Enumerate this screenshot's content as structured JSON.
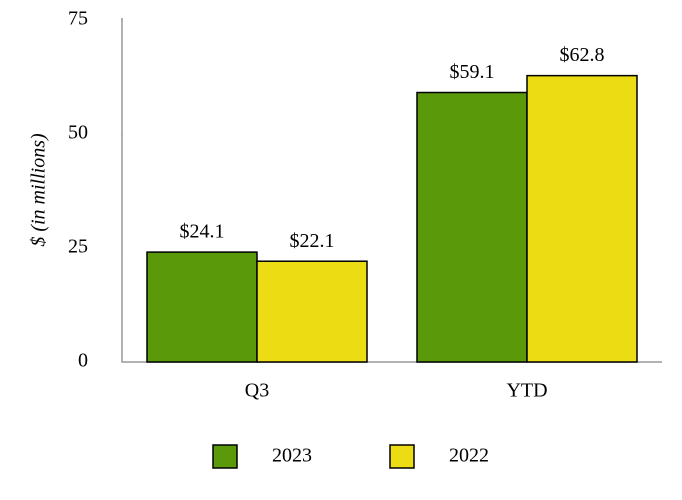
{
  "chart_data": {
    "type": "bar",
    "y_label": "$ (in millions)",
    "categories": [
      "Q3",
      "YTD"
    ],
    "series": [
      {
        "name": "2023",
        "color": "#5a9a0a",
        "values": [
          24.1,
          59.1
        ],
        "value_labels": [
          "$24.1",
          "$59.1"
        ]
      },
      {
        "name": "2022",
        "color": "#ebdc13",
        "values": [
          22.1,
          62.8
        ],
        "value_labels": [
          "$22.1",
          "$62.8"
        ]
      }
    ],
    "ylim": [
      0,
      75
    ],
    "yticks": [
      0,
      25,
      50,
      75
    ],
    "grid": false,
    "legend": "bottom"
  }
}
